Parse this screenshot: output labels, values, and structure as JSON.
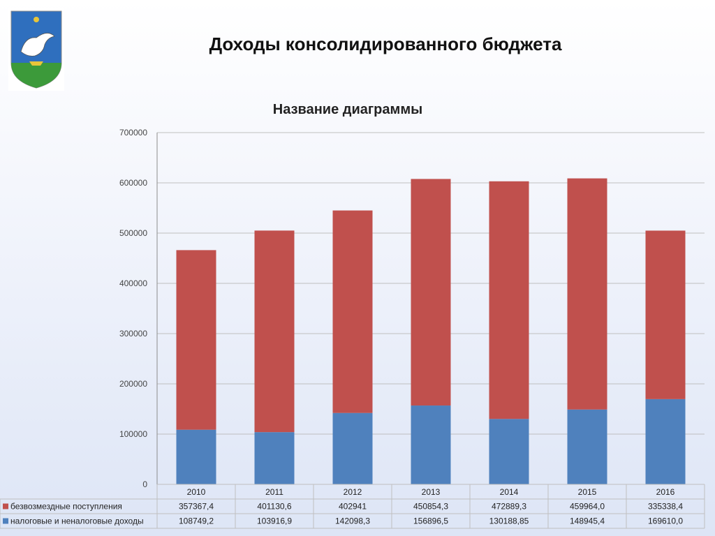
{
  "slide": {
    "title": "Доходы консолидированного бюджета"
  },
  "logo": {
    "name": "coat-of-arms",
    "colors": {
      "shield_top": "#2f6fbe",
      "shield_bottom": "#3c9a3a",
      "bird": "#ffffff",
      "detail": "#e8c53a"
    }
  },
  "colors": {
    "series_top": "#c0504d",
    "series_bottom": "#4f81bd",
    "grid": "#bfbfbf"
  },
  "chart_data": {
    "type": "bar",
    "stacked": true,
    "title": "Название диаграммы",
    "categories": [
      "2010",
      "2011",
      "2012",
      "2013",
      "2014",
      "2015",
      "2016"
    ],
    "ylim": [
      0,
      700000
    ],
    "yticks": [
      "0",
      "100000",
      "200000",
      "300000",
      "400000",
      "500000",
      "600000",
      "700000"
    ],
    "ytick_values": [
      0,
      100000,
      200000,
      300000,
      400000,
      500000,
      600000,
      700000
    ],
    "grid": true,
    "legend": "data-table",
    "series": [
      {
        "name": "безвозмездные поступления",
        "color": "#c0504d",
        "values": [
          357367.4,
          401130.6,
          402941,
          450854.3,
          472889.3,
          459964.0,
          335338.4
        ],
        "labels": [
          "357367,4",
          "401130,6",
          "402941",
          "450854,3",
          "472889,3",
          "459964,0",
          "335338,4"
        ]
      },
      {
        "name": "налоговые и неналоговые доходы",
        "color": "#4f81bd",
        "values": [
          108749.2,
          103916.9,
          142098.3,
          156896.5,
          130188.85,
          148945.4,
          169610.0
        ],
        "labels": [
          "108749,2",
          "103916,9",
          "142098,3",
          "156896,5",
          "130188,85",
          "148945,4",
          "169610,0"
        ]
      }
    ]
  }
}
